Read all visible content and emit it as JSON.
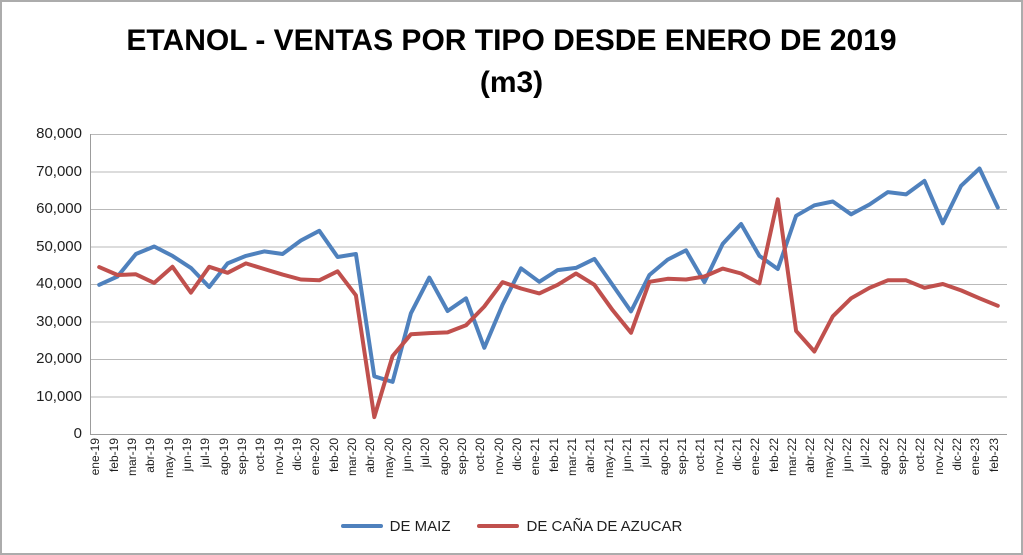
{
  "title": {
    "line1": "ETANOL - VENTAS POR TIPO DESDE ENERO DE 2019",
    "line2": "(m3)"
  },
  "chart_data": {
    "type": "line",
    "title": "ETANOL - VENTAS POR TIPO DESDE ENERO DE 2019 (m3)",
    "categories": [
      "ene-19",
      "feb-19",
      "mar-19",
      "abr-19",
      "may-19",
      "jun-19",
      "jul-19",
      "ago-19",
      "sep-19",
      "oct-19",
      "nov-19",
      "dic-19",
      "ene-20",
      "feb-20",
      "mar-20",
      "abr-20",
      "may-20",
      "jun-20",
      "jul-20",
      "ago-20",
      "sep-20",
      "oct-20",
      "nov-20",
      "dic-20",
      "ene-21",
      "feb-21",
      "mar-21",
      "abr-21",
      "may-21",
      "jun-21",
      "jul-21",
      "ago-21",
      "sep-21",
      "oct-21",
      "nov-21",
      "dic-21",
      "ene-22",
      "feb-22",
      "mar-22",
      "abr-22",
      "may-22",
      "jun-22",
      "jul-22",
      "ago-22",
      "sep-22",
      "oct-22",
      "nov-22",
      "dic-22",
      "ene-23",
      "feb-23"
    ],
    "series": [
      {
        "name": "DE MAIZ",
        "color": "#4F81BD",
        "values": [
          39800,
          42000,
          48000,
          50000,
          47500,
          44300,
          39200,
          45500,
          47500,
          48700,
          48000,
          51600,
          54200,
          47200,
          48000,
          15400,
          13900,
          32200,
          41700,
          32800,
          36200,
          23000,
          34500,
          44200,
          40600,
          43700,
          44300,
          46700,
          39700,
          32700,
          42400,
          46500,
          49000,
          40500,
          50700,
          56000,
          47500,
          44000,
          58200,
          61000,
          62000,
          58600,
          61200,
          64500,
          63900,
          67500,
          56200,
          66200,
          70800,
          60400
        ]
      },
      {
        "name": "DE CAÑA DE AZUCAR",
        "color": "#C0504D",
        "values": [
          44500,
          42400,
          42600,
          40300,
          44600,
          37700,
          44600,
          43000,
          45500,
          44000,
          42500,
          41200,
          41000,
          43400,
          37000,
          4500,
          20800,
          26600,
          26900,
          27100,
          29000,
          34000,
          40500,
          38800,
          37500,
          39800,
          42800,
          39800,
          33000,
          27000,
          40600,
          41400,
          41200,
          42000,
          44100,
          42800,
          40200,
          62600,
          27500,
          22000,
          31400,
          36200,
          39000,
          41000,
          41000,
          39000,
          40000,
          38300,
          36200,
          34200
        ]
      }
    ],
    "ylim": [
      0,
      80000
    ],
    "ytick_interval": 10000,
    "ytick_labels": [
      "0",
      "10,000",
      "20,000",
      "30,000",
      "40,000",
      "50,000",
      "60,000",
      "70,000",
      "80,000"
    ],
    "grid": true,
    "legend_position": "bottom"
  },
  "colors": {
    "gridline": "#B9B9B9",
    "axis_line": "#9C9C9C",
    "label_text": "#1F1F1F",
    "frame": "#ACACAC"
  }
}
